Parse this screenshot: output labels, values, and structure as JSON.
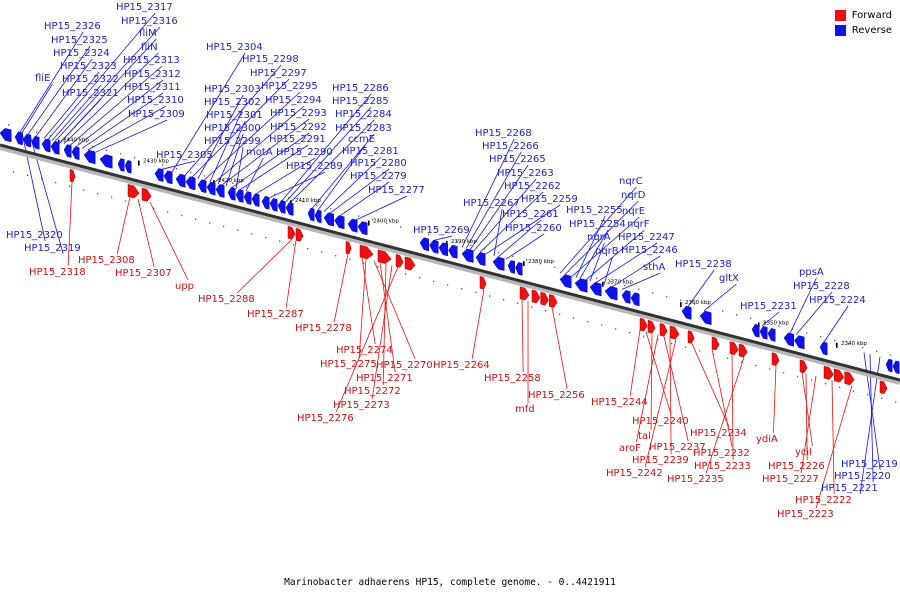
{
  "caption": "Marinobacter adhaerens HP15, complete genome. - 0..4421911",
  "legend": [
    {
      "label": "Forward",
      "color": "#ee1111"
    },
    {
      "label": "Reverse",
      "color": "#1111ee"
    }
  ],
  "ticks": [
    "2440 kbp",
    "2430 kbp",
    "2420 kbp",
    "2410 kbp",
    "2400 kbp",
    "2390 kbp",
    "2380 kbp",
    "2370 kbp",
    "2360 kbp",
    "2350 kbp",
    "2340 kbp"
  ],
  "reverse_labels": [
    "HP15_2317",
    "HP15_2326",
    "HP15_2316",
    "HP15_2325",
    "fliM",
    "HP15_2324",
    "fliN",
    "HP15_2323",
    "HP15_2313",
    "fliE",
    "HP15_2322",
    "HP15_2312",
    "HP15_2321",
    "HP15_2311",
    "HP15_2310",
    "HP15_2309",
    "HP15_2305",
    "HP15_2304",
    "HP15_2298",
    "HP15_2297",
    "HP15_2303",
    "HP15_2295",
    "HP15_2302",
    "HP15_2294",
    "HP15_2301",
    "HP15_2293",
    "HP15_2300",
    "HP15_2292",
    "HP15_2299",
    "HP15_2291",
    "motA",
    "HP15_2290",
    "HP15_2289",
    "HP15_2286",
    "HP15_2285",
    "HP15_2284",
    "HP15_2283",
    "ccmE",
    "HP15_2281",
    "HP15_2280",
    "HP15_2279",
    "HP15_2277",
    "HP15_2268",
    "HP15_2266",
    "HP15_2265",
    "HP15_2263",
    "HP15_2262",
    "HP15_2259",
    "HP15_2267",
    "HP15_2261",
    "HP15_2260",
    "HP15_2269",
    "nqrC",
    "nqrD",
    "nqrE",
    "HP15_2255",
    "HP15_2254",
    "nqrF",
    "nqrA",
    "HP15_2247",
    "nqrB",
    "HP15_2246",
    "sthA",
    "HP15_2238",
    "gltX",
    "ppsA",
    "HP15_2228",
    "HP15_2224",
    "HP15_2231",
    "HP15_2320",
    "HP15_2319",
    "HP15_2219",
    "HP15_2220",
    "HP15_2221"
  ],
  "forward_labels": [
    "HP15_2318",
    "HP15_2308",
    "HP15_2307",
    "upp",
    "HP15_2288",
    "HP15_2287",
    "HP15_2278",
    "HP15_2274",
    "HP15_2275",
    "HP15_2270",
    "HP15_2271",
    "HP15_2272",
    "HP15_2273",
    "HP15_2276",
    "HP15_2264",
    "HP15_2258",
    "mfd",
    "HP15_2256",
    "HP15_2244",
    "HP15_2240",
    "tal",
    "aroF",
    "HP15_2237",
    "HP15_2239",
    "HP15_2242",
    "HP15_2234",
    "HP15_2232",
    "HP15_2233",
    "HP15_2235",
    "ydiA",
    "ycil",
    "HP15_2226",
    "HP15_2227",
    "HP15_2222",
    "HP15_2223"
  ]
}
